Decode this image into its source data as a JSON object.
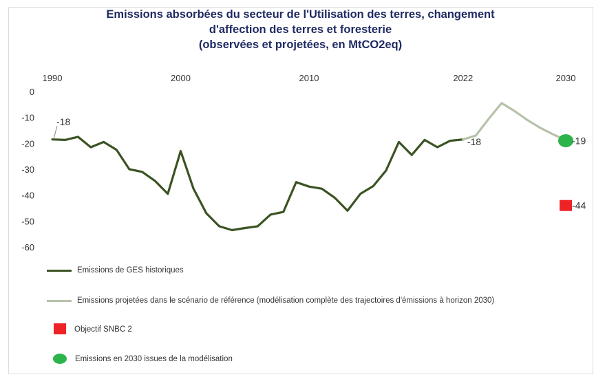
{
  "chart_data": {
    "type": "line",
    "title_lines": [
      "Emissions absorbées du secteur de l'Utilisation des terres, changement",
      "d'affection des terres et foresterie",
      "(observées et projetées, en MtCO2eq)"
    ],
    "x_ticks": [
      1990,
      2000,
      2010,
      2022,
      2030
    ],
    "y_ticks": [
      0,
      -10,
      -20,
      -30,
      -40,
      -50,
      -60
    ],
    "ylim": [
      -60,
      0
    ],
    "xlim": [
      1990,
      2030
    ],
    "series": [
      {
        "name": "Emissions de GES historiques",
        "color": "#3b5323",
        "points": [
          [
            1990,
            -18.5
          ],
          [
            1991,
            -18.7
          ],
          [
            1992,
            -17.5
          ],
          [
            1993,
            -21.5
          ],
          [
            1994,
            -19.5
          ],
          [
            1995,
            -22.5
          ],
          [
            1996,
            -30
          ],
          [
            1997,
            -31
          ],
          [
            1998,
            -34.5
          ],
          [
            1999,
            -39.5
          ],
          [
            2000,
            -23
          ],
          [
            2001,
            -37.5
          ],
          [
            2002,
            -47
          ],
          [
            2003,
            -52
          ],
          [
            2004,
            -53.5
          ],
          [
            2005,
            -52.7
          ],
          [
            2006,
            -52
          ],
          [
            2007,
            -47.5
          ],
          [
            2008,
            -46.5
          ],
          [
            2009,
            -35
          ],
          [
            2010,
            -36.7
          ],
          [
            2011,
            -37.5
          ],
          [
            2012,
            -41
          ],
          [
            2013,
            -46
          ],
          [
            2014,
            -39.5
          ],
          [
            2015,
            -36.5
          ],
          [
            2016,
            -30.5
          ],
          [
            2017,
            -19.5
          ],
          [
            2018,
            -24.5
          ],
          [
            2019,
            -18.7
          ],
          [
            2020,
            -21.5
          ],
          [
            2021,
            -19
          ],
          [
            2022,
            -18.5
          ]
        ]
      },
      {
        "name": "Emissions projetées dans le scénario de référence (modélisation complète des trajectoires d'émissions à horizon 2030)",
        "color": "#b5c2a9",
        "points": [
          [
            2022,
            -18.5
          ],
          [
            2023,
            -17
          ],
          [
            2024,
            -10.5
          ],
          [
            2025,
            -4.5
          ],
          [
            2026,
            -7.5
          ],
          [
            2027,
            -11
          ],
          [
            2028,
            -14
          ],
          [
            2029,
            -16.5
          ],
          [
            2030,
            -18.8
          ]
        ]
      }
    ],
    "markers": [
      {
        "name": "Objectif SNBC 2",
        "shape": "square",
        "color": "#ee2326",
        "x": 2030,
        "y": -44,
        "label": "-44"
      },
      {
        "name": "Emissions en 2030 issues de la modélisation",
        "shape": "circle",
        "color": "#2bb44a",
        "x": 2030,
        "y": -19,
        "label": "-19"
      }
    ],
    "annotations": [
      {
        "x": 1990,
        "y": -18,
        "text": "-18"
      },
      {
        "x": 2022,
        "y": -18,
        "text": "-18"
      }
    ]
  }
}
